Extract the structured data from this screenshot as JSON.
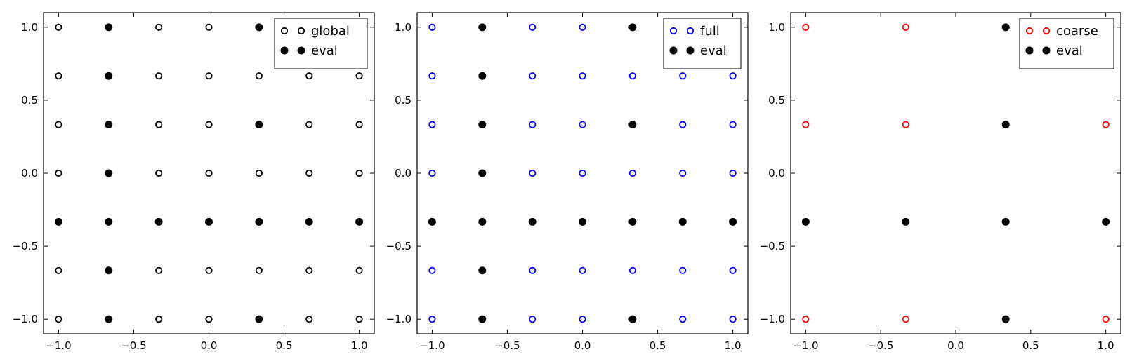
{
  "chart_data": [
    {
      "type": "scatter",
      "xlim": [
        -1.1,
        1.1
      ],
      "ylim": [
        -1.1,
        1.1
      ],
      "xticks": [
        -1.0,
        -0.5,
        0.0,
        0.5,
        1.0
      ],
      "yticks": [
        -1.0,
        -0.5,
        0.0,
        0.5,
        1.0
      ],
      "xtick_labels": [
        "−1.0",
        "−0.5",
        "0.0",
        "0.5",
        "1.0"
      ],
      "ytick_labels": [
        "−1.0",
        "−0.5",
        "0.0",
        "0.5",
        "1.0"
      ],
      "grid": false,
      "legend_position": "top-right",
      "series": [
        {
          "name": "global",
          "marker": "open-circle",
          "color": "#000000",
          "x": [
            -1,
            -0.6667,
            -0.3333,
            0,
            0.3333,
            0.6667,
            1
          ],
          "y": [
            -1,
            -0.6667,
            -0.3333,
            0,
            0.3333,
            0.6667,
            1
          ],
          "grid_product": true
        },
        {
          "name": "eval",
          "marker": "filled-circle",
          "color": "#000000",
          "points": [
            [
              -0.6667,
              1
            ],
            [
              0.3333,
              1
            ],
            [
              -0.6667,
              0.6667
            ],
            [
              -0.6667,
              0.3333
            ],
            [
              0.3333,
              0.3333
            ],
            [
              -0.6667,
              0
            ],
            [
              -1,
              -0.3333
            ],
            [
              -0.6667,
              -0.3333
            ],
            [
              -0.3333,
              -0.3333
            ],
            [
              0,
              -0.3333
            ],
            [
              0.3333,
              -0.3333
            ],
            [
              0.6667,
              -0.3333
            ],
            [
              1,
              -0.3333
            ],
            [
              -0.6667,
              -0.6667
            ],
            [
              -0.6667,
              -1
            ],
            [
              0.3333,
              -1
            ]
          ]
        }
      ]
    },
    {
      "type": "scatter",
      "xlim": [
        -1.1,
        1.1
      ],
      "ylim": [
        -1.1,
        1.1
      ],
      "xticks": [
        -1.0,
        -0.5,
        0.0,
        0.5,
        1.0
      ],
      "yticks": [
        -1.0,
        -0.5,
        0.0,
        0.5,
        1.0
      ],
      "xtick_labels": [
        "−1.0",
        "−0.5",
        "0.0",
        "0.5",
        "1.0"
      ],
      "ytick_labels": [
        "−1.0",
        "−0.5",
        "0.0",
        "0.5",
        "1.0"
      ],
      "grid": false,
      "legend_position": "top-right",
      "series": [
        {
          "name": "full",
          "marker": "open-circle",
          "color": "#0000ff",
          "x": [
            -1,
            -0.6667,
            -0.3333,
            0,
            0.3333,
            0.6667,
            1
          ],
          "y": [
            -1,
            -0.6667,
            -0.3333,
            0,
            0.3333,
            0.6667,
            1
          ],
          "grid_product": true
        },
        {
          "name": "eval",
          "marker": "filled-circle",
          "color": "#000000",
          "points": [
            [
              -0.6667,
              1
            ],
            [
              0.3333,
              1
            ],
            [
              -0.6667,
              0.6667
            ],
            [
              -0.6667,
              0.3333
            ],
            [
              0.3333,
              0.3333
            ],
            [
              -0.6667,
              0
            ],
            [
              -1,
              -0.3333
            ],
            [
              -0.6667,
              -0.3333
            ],
            [
              -0.3333,
              -0.3333
            ],
            [
              0,
              -0.3333
            ],
            [
              0.3333,
              -0.3333
            ],
            [
              0.6667,
              -0.3333
            ],
            [
              1,
              -0.3333
            ],
            [
              -0.6667,
              -0.6667
            ],
            [
              -0.6667,
              -1
            ],
            [
              0.3333,
              -1
            ]
          ]
        }
      ]
    },
    {
      "type": "scatter",
      "xlim": [
        -1.1,
        1.1
      ],
      "ylim": [
        -1.1,
        1.1
      ],
      "xticks": [
        -1.0,
        -0.5,
        0.0,
        0.5,
        1.0
      ],
      "yticks": [
        -1.0,
        -0.5,
        0.0,
        0.5,
        1.0
      ],
      "xtick_labels": [
        "−1.0",
        "−0.5",
        "0.0",
        "0.5",
        "1.0"
      ],
      "ytick_labels": [
        "−1.0",
        "−0.5",
        "0.0",
        "0.5",
        "1.0"
      ],
      "grid": false,
      "legend_position": "top-right",
      "series": [
        {
          "name": "coarse",
          "marker": "open-circle",
          "color": "#ff0000",
          "points": [
            [
              -1,
              1
            ],
            [
              -0.3333,
              1
            ],
            [
              -1,
              0.3333
            ],
            [
              -0.3333,
              0.3333
            ],
            [
              1,
              0.3333
            ],
            [
              -1,
              -1
            ],
            [
              -0.3333,
              -1
            ],
            [
              1,
              -1
            ]
          ]
        },
        {
          "name": "eval",
          "marker": "filled-circle",
          "color": "#000000",
          "points": [
            [
              0.3333,
              1
            ],
            [
              0.3333,
              0.3333
            ],
            [
              -1,
              -0.3333
            ],
            [
              -0.3333,
              -0.3333
            ],
            [
              0.3333,
              -0.3333
            ],
            [
              1,
              -0.3333
            ],
            [
              0.3333,
              -1
            ]
          ]
        }
      ]
    }
  ]
}
